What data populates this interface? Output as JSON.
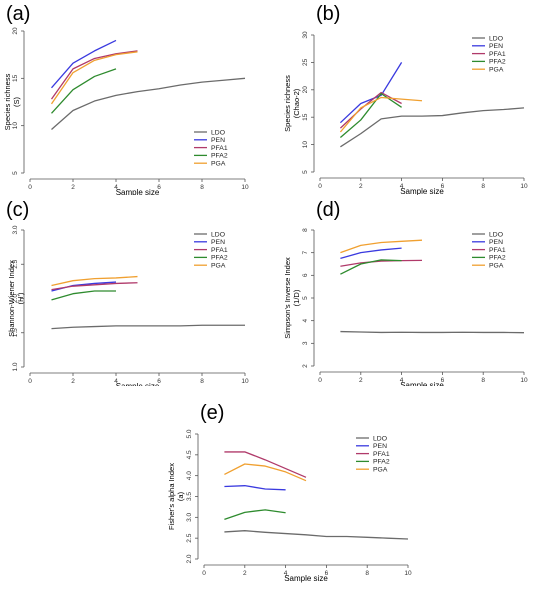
{
  "colors": {
    "LDO": "#6b6b6b",
    "PEN": "#3a3adf",
    "PFA1": "#b03a6a",
    "PFA2": "#2e8b2e",
    "PGA": "#f0a030"
  },
  "legend": [
    "LDO",
    "PEN",
    "PFA1",
    "PFA2",
    "PGA"
  ],
  "chart_data": [
    {
      "type": "line",
      "panel_label": "(a)",
      "title": "",
      "xlabel": "Sample size",
      "ylabel": "Species richness (S)",
      "xlim": [
        0,
        10
      ],
      "ylim": [
        5,
        20
      ],
      "xticks": [
        0,
        2,
        4,
        6,
        8,
        10
      ],
      "yticks": [
        5,
        10,
        15,
        20
      ],
      "legend_position": "bottom-right",
      "series": [
        {
          "name": "LDO",
          "x": [
            1,
            2,
            3,
            4,
            5,
            6,
            7,
            8,
            9,
            10
          ],
          "values": [
            9.6,
            11.6,
            12.6,
            13.2,
            13.6,
            13.9,
            14.3,
            14.6,
            14.8,
            15.0
          ]
        },
        {
          "name": "PEN",
          "x": [
            1,
            2,
            3,
            4
          ],
          "values": [
            14.0,
            16.6,
            17.9,
            19.0
          ]
        },
        {
          "name": "PFA1",
          "x": [
            1,
            2,
            3,
            4,
            5
          ],
          "values": [
            12.8,
            16.0,
            17.1,
            17.6,
            17.9
          ]
        },
        {
          "name": "PFA2",
          "x": [
            1,
            2,
            3,
            4
          ],
          "values": [
            11.3,
            13.8,
            15.2,
            16.0
          ]
        },
        {
          "name": "PGA",
          "x": [
            1,
            2,
            3,
            4,
            5
          ],
          "values": [
            12.3,
            15.6,
            16.9,
            17.5,
            17.8
          ]
        }
      ]
    },
    {
      "type": "line",
      "panel_label": "(b)",
      "title": "",
      "xlabel": "Sample size",
      "ylabel": "Species richness (Chao-2)",
      "xlim": [
        0,
        10
      ],
      "ylim": [
        5,
        30
      ],
      "xticks": [
        0,
        2,
        4,
        6,
        8,
        10
      ],
      "yticks": [
        5,
        10,
        15,
        20,
        25,
        30
      ],
      "legend_position": "top-right",
      "series": [
        {
          "name": "LDO",
          "x": [
            1,
            2,
            3,
            4,
            5,
            6,
            7,
            8,
            9,
            10
          ],
          "values": [
            9.6,
            12.0,
            14.7,
            15.2,
            15.2,
            15.3,
            15.8,
            16.2,
            16.4,
            16.7
          ]
        },
        {
          "name": "PEN",
          "x": [
            1,
            2,
            3,
            4
          ],
          "values": [
            14.0,
            17.5,
            19.0,
            25.0
          ]
        },
        {
          "name": "PFA1",
          "x": [
            1,
            2,
            3,
            4
          ],
          "values": [
            13.0,
            16.5,
            19.5,
            17.5
          ]
        },
        {
          "name": "PFA2",
          "x": [
            1,
            2,
            3,
            4
          ],
          "values": [
            11.3,
            14.5,
            19.3,
            16.8
          ]
        },
        {
          "name": "PGA",
          "x": [
            1,
            2,
            3,
            4,
            5
          ],
          "values": [
            12.3,
            16.7,
            18.6,
            18.3,
            18.0
          ]
        }
      ]
    },
    {
      "type": "line",
      "panel_label": "(c)",
      "title": "",
      "xlabel": "Sample size",
      "ylabel": "Shannon-Wiener Index (H')",
      "xlim": [
        0,
        10
      ],
      "ylim": [
        1.0,
        3.0
      ],
      "xticks": [
        0,
        2,
        4,
        6,
        8,
        10
      ],
      "yticks": [
        1.0,
        1.5,
        2.0,
        2.5,
        3.0
      ],
      "legend_position": "top-right",
      "series": [
        {
          "name": "LDO",
          "x": [
            1,
            2,
            3,
            4,
            5,
            6,
            7,
            8,
            9,
            10
          ],
          "values": [
            1.56,
            1.58,
            1.59,
            1.6,
            1.6,
            1.6,
            1.6,
            1.61,
            1.61,
            1.61
          ]
        },
        {
          "name": "PEN",
          "x": [
            1,
            2,
            3,
            4
          ],
          "values": [
            2.11,
            2.19,
            2.22,
            2.24
          ]
        },
        {
          "name": "PFA1",
          "x": [
            1,
            2,
            3,
            4,
            5
          ],
          "values": [
            2.13,
            2.18,
            2.2,
            2.22,
            2.23
          ]
        },
        {
          "name": "PFA2",
          "x": [
            1,
            2,
            3,
            4
          ],
          "values": [
            1.98,
            2.07,
            2.11,
            2.11
          ]
        },
        {
          "name": "PGA",
          "x": [
            1,
            2,
            3,
            4,
            5
          ],
          "values": [
            2.19,
            2.26,
            2.29,
            2.3,
            2.32
          ]
        }
      ]
    },
    {
      "type": "line",
      "panel_label": "(d)",
      "title": "",
      "xlabel": "Sample size",
      "ylabel": "Simpson's Inverse Index (1/D)",
      "xlim": [
        0,
        10
      ],
      "ylim": [
        2,
        8
      ],
      "xticks": [
        0,
        2,
        4,
        6,
        8,
        10
      ],
      "yticks": [
        2,
        3,
        4,
        5,
        6,
        7,
        8
      ],
      "legend_position": "top-right",
      "series": [
        {
          "name": "LDO",
          "x": [
            1,
            2,
            3,
            4,
            5,
            6,
            7,
            8,
            9,
            10
          ],
          "values": [
            3.52,
            3.5,
            3.48,
            3.49,
            3.48,
            3.48,
            3.49,
            3.48,
            3.48,
            3.47
          ]
        },
        {
          "name": "PEN",
          "x": [
            1,
            2,
            3,
            4
          ],
          "values": [
            6.75,
            7.0,
            7.12,
            7.2
          ]
        },
        {
          "name": "PFA1",
          "x": [
            1,
            2,
            3,
            4,
            5
          ],
          "values": [
            6.4,
            6.55,
            6.63,
            6.65,
            6.66
          ]
        },
        {
          "name": "PFA2",
          "x": [
            1,
            2,
            3,
            4
          ],
          "values": [
            6.05,
            6.5,
            6.68,
            6.65
          ]
        },
        {
          "name": "PGA",
          "x": [
            1,
            2,
            3,
            4,
            5
          ],
          "values": [
            7.0,
            7.32,
            7.45,
            7.5,
            7.55
          ]
        }
      ]
    },
    {
      "type": "line",
      "panel_label": "(e)",
      "title": "",
      "xlabel": "Sample size",
      "ylabel": "Fisher's alpha Index (a)",
      "xlim": [
        0,
        10
      ],
      "ylim": [
        2.0,
        5.0
      ],
      "xticks": [
        0,
        2,
        4,
        6,
        8,
        10
      ],
      "yticks": [
        2.0,
        2.5,
        3.0,
        3.5,
        4.0,
        4.5,
        5.0
      ],
      "legend_position": "top-right",
      "series": [
        {
          "name": "LDO",
          "x": [
            1,
            2,
            3,
            4,
            5,
            6,
            7,
            8,
            9,
            10
          ],
          "values": [
            2.65,
            2.68,
            2.64,
            2.61,
            2.58,
            2.54,
            2.54,
            2.52,
            2.5,
            2.48
          ]
        },
        {
          "name": "PEN",
          "x": [
            1,
            2,
            3,
            4
          ],
          "values": [
            3.74,
            3.76,
            3.68,
            3.66
          ]
        },
        {
          "name": "PFA1",
          "x": [
            1,
            2,
            3,
            4,
            5
          ],
          "values": [
            4.57,
            4.57,
            4.38,
            4.17,
            3.96
          ]
        },
        {
          "name": "PFA2",
          "x": [
            1,
            2,
            3,
            4
          ],
          "values": [
            2.95,
            3.12,
            3.18,
            3.11
          ]
        },
        {
          "name": "PGA",
          "x": [
            1,
            2,
            3,
            4,
            5
          ],
          "values": [
            4.03,
            4.28,
            4.23,
            4.09,
            3.88
          ]
        }
      ]
    }
  ]
}
